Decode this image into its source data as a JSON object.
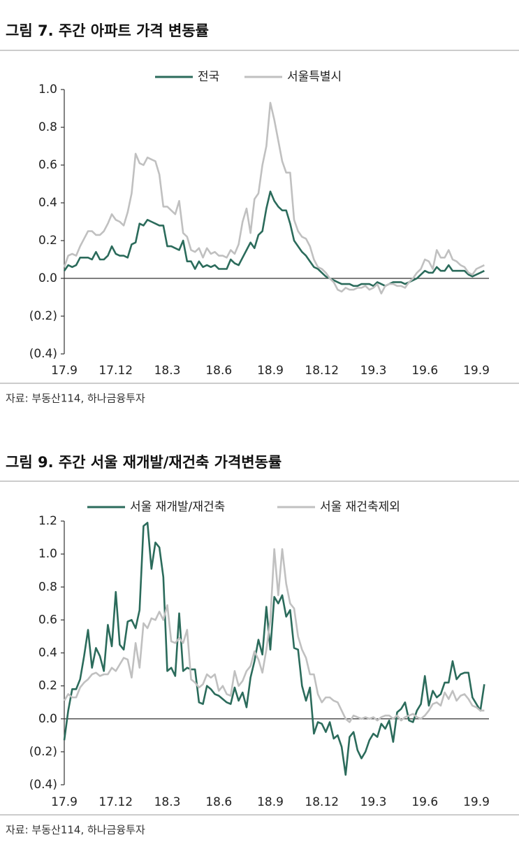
{
  "chart_data": [
    {
      "type": "line",
      "title": "그림 7. 주간 아파트 가격 변동률",
      "source": "자료: 부동산114, 하나금융투자",
      "categories": [
        "17.9",
        null,
        null,
        null,
        null,
        null,
        null,
        null,
        null,
        null,
        null,
        null,
        null,
        "17.12",
        null,
        null,
        null,
        null,
        null,
        null,
        null,
        null,
        null,
        null,
        null,
        null,
        "18.3",
        null,
        null,
        null,
        null,
        null,
        null,
        null,
        null,
        null,
        null,
        null,
        null,
        "18.6",
        null,
        null,
        null,
        null,
        null,
        null,
        null,
        null,
        null,
        null,
        null,
        null,
        "18.9",
        null,
        null,
        null,
        null,
        null,
        null,
        null,
        null,
        null,
        null,
        null,
        null,
        "18.12",
        null,
        null,
        null,
        null,
        null,
        null,
        null,
        null,
        null,
        null,
        null,
        null,
        "19.3",
        null,
        null,
        null,
        null,
        null,
        null,
        null,
        null,
        null,
        null,
        null,
        null,
        "19.6",
        null,
        null,
        null,
        null,
        null,
        null,
        null,
        null,
        null,
        null,
        null,
        null,
        "19.9",
        null,
        null
      ],
      "series": [
        {
          "name": "전국",
          "color": "#2b6b5b",
          "values": [
            0.04,
            0.07,
            0.06,
            0.07,
            0.11,
            0.11,
            0.11,
            0.1,
            0.14,
            0.1,
            0.1,
            0.12,
            0.17,
            0.13,
            0.12,
            0.12,
            0.11,
            0.18,
            0.19,
            0.29,
            0.28,
            0.31,
            0.3,
            0.29,
            0.28,
            0.28,
            0.17,
            0.17,
            0.16,
            0.15,
            0.2,
            0.09,
            0.09,
            0.05,
            0.09,
            0.06,
            0.07,
            0.06,
            0.07,
            0.05,
            0.05,
            0.05,
            0.1,
            0.08,
            0.07,
            0.11,
            0.15,
            0.19,
            0.16,
            0.23,
            0.25,
            0.37,
            0.46,
            0.41,
            0.38,
            0.36,
            0.36,
            0.29,
            0.2,
            0.17,
            0.14,
            0.12,
            0.09,
            0.06,
            0.05,
            0.03,
            0.01,
            0.0,
            -0.01,
            -0.02,
            -0.03,
            -0.03,
            -0.03,
            -0.04,
            -0.04,
            -0.03,
            -0.03,
            -0.03,
            -0.04,
            -0.02,
            -0.03,
            -0.04,
            -0.03,
            -0.02,
            -0.02,
            -0.02,
            -0.03,
            -0.02,
            -0.01,
            0.0,
            0.02,
            0.04,
            0.03,
            0.03,
            0.06,
            0.04,
            0.04,
            0.07,
            0.04,
            0.04,
            0.04,
            0.04,
            0.02,
            0.01,
            0.02,
            0.03,
            0.04
          ]
        },
        {
          "name": "서울특별시",
          "color": "#c0c0c0",
          "values": [
            0.06,
            0.12,
            0.13,
            0.12,
            0.17,
            0.21,
            0.25,
            0.25,
            0.23,
            0.23,
            0.25,
            0.29,
            0.34,
            0.31,
            0.3,
            0.28,
            0.35,
            0.45,
            0.66,
            0.61,
            0.6,
            0.64,
            0.63,
            0.62,
            0.55,
            0.38,
            0.38,
            0.36,
            0.34,
            0.41,
            0.24,
            0.22,
            0.15,
            0.14,
            0.16,
            0.11,
            0.16,
            0.13,
            0.14,
            0.12,
            0.12,
            0.11,
            0.15,
            0.13,
            0.18,
            0.3,
            0.37,
            0.24,
            0.42,
            0.45,
            0.6,
            0.7,
            0.93,
            0.84,
            0.73,
            0.62,
            0.56,
            0.56,
            0.31,
            0.25,
            0.22,
            0.21,
            0.17,
            0.1,
            0.06,
            0.05,
            0.03,
            0.0,
            -0.02,
            -0.06,
            -0.07,
            -0.05,
            -0.06,
            -0.06,
            -0.05,
            -0.05,
            -0.04,
            -0.06,
            -0.05,
            -0.03,
            -0.08,
            -0.04,
            -0.03,
            -0.03,
            -0.04,
            -0.04,
            -0.05,
            -0.02,
            0.0,
            0.03,
            0.05,
            0.1,
            0.09,
            0.05,
            0.15,
            0.11,
            0.11,
            0.15,
            0.1,
            0.09,
            0.07,
            0.06,
            0.03,
            0.02,
            0.05,
            0.06,
            0.07
          ]
        }
      ],
      "ylim": [
        -0.4,
        1
      ],
      "yticks": [
        {
          "value": 1,
          "label": "1.0"
        },
        0.8,
        0.6,
        0.4,
        0.2,
        {
          "value": 0,
          "label": "0.0"
        },
        {
          "value": -0.2,
          "label": "(0.2)"
        },
        {
          "value": -0.4,
          "label": "(0.4)"
        }
      ],
      "grid": false
    },
    {
      "type": "line",
      "title": "그림 9. 주간 서울 재개발/재건축 가격변동률",
      "source": "자료: 부동산114, 하나금융투자",
      "categories": [
        "17.9",
        null,
        null,
        null,
        null,
        null,
        null,
        null,
        null,
        null,
        null,
        null,
        null,
        "17.12",
        null,
        null,
        null,
        null,
        null,
        null,
        null,
        null,
        null,
        null,
        null,
        null,
        "18.3",
        null,
        null,
        null,
        null,
        null,
        null,
        null,
        null,
        null,
        null,
        null,
        null,
        "18.6",
        null,
        null,
        null,
        null,
        null,
        null,
        null,
        null,
        null,
        null,
        null,
        null,
        "18.9",
        null,
        null,
        null,
        null,
        null,
        null,
        null,
        null,
        null,
        null,
        null,
        null,
        "18.12",
        null,
        null,
        null,
        null,
        null,
        null,
        null,
        null,
        null,
        null,
        null,
        null,
        "19.3",
        null,
        null,
        null,
        null,
        null,
        null,
        null,
        null,
        null,
        null,
        null,
        null,
        "19.6",
        null,
        null,
        null,
        null,
        null,
        null,
        null,
        null,
        null,
        null,
        null,
        null,
        "19.9",
        null,
        null
      ],
      "series": [
        {
          "name": "서울 재개발/재건축",
          "color": "#2b6b5b",
          "values": [
            -0.13,
            0.05,
            0.18,
            0.18,
            0.24,
            0.38,
            0.54,
            0.31,
            0.43,
            0.38,
            0.29,
            0.57,
            0.44,
            0.77,
            0.45,
            0.42,
            0.59,
            0.6,
            0.55,
            0.66,
            1.17,
            1.19,
            0.91,
            1.07,
            1.04,
            0.86,
            0.29,
            0.31,
            0.26,
            0.64,
            0.29,
            0.31,
            0.3,
            0.3,
            0.1,
            0.09,
            0.2,
            0.18,
            0.15,
            0.14,
            0.12,
            0.1,
            0.09,
            0.19,
            0.11,
            0.16,
            0.07,
            0.25,
            0.35,
            0.48,
            0.39,
            0.68,
            0.42,
            0.74,
            0.7,
            0.75,
            0.62,
            0.66,
            0.43,
            0.42,
            0.2,
            0.11,
            0.19,
            -0.09,
            -0.02,
            -0.03,
            -0.08,
            -0.02,
            -0.12,
            -0.1,
            -0.17,
            -0.34,
            -0.11,
            -0.08,
            -0.19,
            -0.24,
            -0.2,
            -0.13,
            -0.09,
            -0.11,
            -0.03,
            -0.06,
            -0.01,
            -0.14,
            0.04,
            0.06,
            0.1,
            -0.01,
            -0.02,
            0.05,
            0.09,
            0.26,
            0.08,
            0.17,
            0.13,
            0.15,
            0.22,
            0.22,
            0.35,
            0.24,
            0.27,
            0.28,
            0.28,
            0.13,
            0.09,
            0.05,
            0.21
          ]
        },
        {
          "name": "서울 재건축제외",
          "color": "#c0c0c0",
          "values": [
            0.11,
            0.15,
            0.13,
            0.13,
            0.19,
            0.22,
            0.24,
            0.27,
            0.28,
            0.26,
            0.27,
            0.27,
            0.31,
            0.29,
            0.33,
            0.37,
            0.36,
            0.25,
            0.46,
            0.31,
            0.58,
            0.55,
            0.61,
            0.6,
            0.65,
            0.6,
            0.69,
            0.47,
            0.46,
            0.49,
            0.46,
            0.54,
            0.24,
            0.22,
            0.19,
            0.21,
            0.27,
            0.25,
            0.27,
            0.17,
            0.2,
            0.15,
            0.14,
            0.29,
            0.2,
            0.23,
            0.29,
            0.32,
            0.41,
            0.36,
            0.28,
            0.42,
            0.6,
            1.03,
            0.75,
            1.03,
            0.82,
            0.7,
            0.67,
            0.5,
            0.42,
            0.37,
            0.27,
            0.27,
            0.15,
            0.1,
            0.13,
            0.13,
            0.11,
            0.1,
            0.05,
            0.0,
            -0.02,
            0.02,
            0.01,
            0.0,
            0.01,
            0.0,
            0.01,
            -0.01,
            0.01,
            0.02,
            0.02,
            0.0,
            0.02,
            -0.01,
            0.01,
            0.02,
            0.03,
            0.01,
            0.0,
            0.02,
            0.05,
            0.09,
            0.1,
            0.08,
            0.16,
            0.12,
            0.17,
            0.11,
            0.14,
            0.15,
            0.12,
            0.08,
            0.07,
            0.05,
            0.05
          ]
        }
      ],
      "ylim": [
        -0.4,
        1.2
      ],
      "yticks": [
        1.2,
        {
          "value": 1,
          "label": "1.0"
        },
        0.8,
        0.6,
        0.4,
        0.2,
        {
          "value": 0,
          "label": "0.0"
        },
        {
          "value": -0.2,
          "label": "(0.2)"
        },
        {
          "value": -0.4,
          "label": "(0.4)"
        }
      ],
      "grid": false
    }
  ]
}
